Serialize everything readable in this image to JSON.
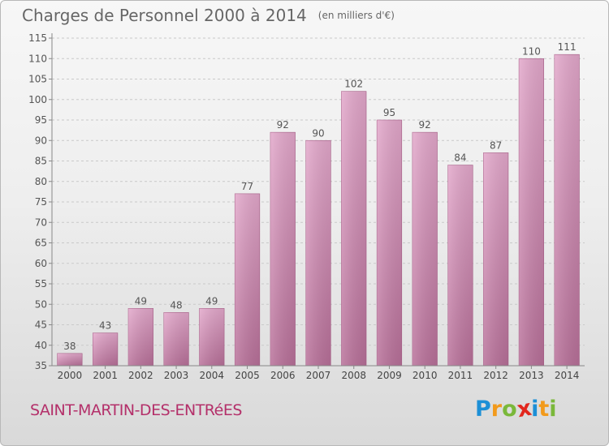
{
  "header": {
    "title": "Charges de Personnel 2000 à 2014",
    "unit": "(en milliers d'€)"
  },
  "footer": {
    "commune": "SAINT-MARTIN-DES-ENTRéES",
    "logo_letters": [
      "P",
      "r",
      "o",
      "x",
      "i",
      "t",
      "i"
    ],
    "logo_colors": [
      "#1c8fd6",
      "#f29a1c",
      "#7ab83a",
      "#e2261d",
      "#1c8fd6",
      "#f29a1c",
      "#7ab83a"
    ]
  },
  "chart_data": {
    "type": "bar",
    "title": "Charges de Personnel 2000 à 2014",
    "ylim": [
      35,
      115
    ],
    "yticks": [
      35,
      40,
      45,
      50,
      55,
      60,
      65,
      70,
      75,
      80,
      85,
      90,
      95,
      100,
      105,
      110,
      115
    ],
    "categories": [
      "2000",
      "2001",
      "2002",
      "2003",
      "2004",
      "2005",
      "2006",
      "2007",
      "2008",
      "2009",
      "2010",
      "2011",
      "2012",
      "2013",
      "2014"
    ],
    "values": [
      38,
      43,
      49,
      48,
      49,
      77,
      92,
      90,
      102,
      95,
      92,
      84,
      87,
      110,
      111
    ],
    "bar_color": "#d98fb8",
    "grid": "horizontal dashed"
  }
}
